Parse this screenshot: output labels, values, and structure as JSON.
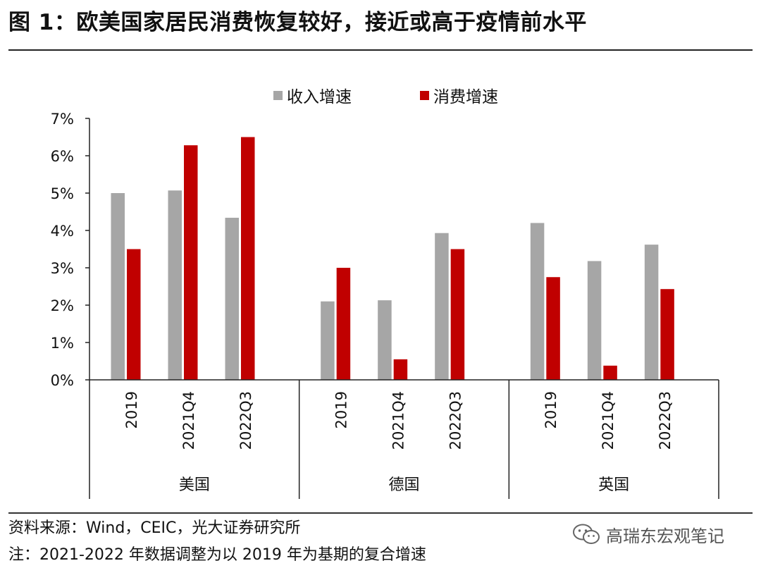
{
  "title": "图 1：欧美国家居民消费恢复较好，接近或高于疫情前水平",
  "footer": {
    "source": "资料来源：Wind，CEIC，光大证券研究所",
    "note": "注：2021-2022 年数据调整为以 2019 年为基期的复合增速"
  },
  "watermark": {
    "text": "高瑞东宏观笔记",
    "icon": "wechat-icon"
  },
  "colors": {
    "income": "#a6a6a6",
    "consumption": "#c00000"
  },
  "chart_data": {
    "type": "bar",
    "title": "",
    "xlabel": "",
    "ylabel": "",
    "ylim": [
      0,
      7
    ],
    "yticks": [
      "0%",
      "1%",
      "2%",
      "3%",
      "4%",
      "5%",
      "6%",
      "7%"
    ],
    "legend_position": "top-center",
    "grid": false,
    "groups": [
      {
        "name": "美国",
        "categories": [
          "2019",
          "2021Q4",
          "2022Q3"
        ]
      },
      {
        "name": "德国",
        "categories": [
          "2019",
          "2021Q4",
          "2022Q3"
        ]
      },
      {
        "name": "英国",
        "categories": [
          "2019",
          "2021Q4",
          "2022Q3"
        ]
      }
    ],
    "series": [
      {
        "name": "收入增速",
        "values": [
          5.0,
          5.07,
          4.34,
          2.1,
          2.13,
          3.93,
          4.2,
          3.18,
          3.62
        ]
      },
      {
        "name": "消费增速",
        "values": [
          3.5,
          6.28,
          6.5,
          3.0,
          0.55,
          3.5,
          2.75,
          0.38,
          2.43
        ]
      }
    ]
  }
}
